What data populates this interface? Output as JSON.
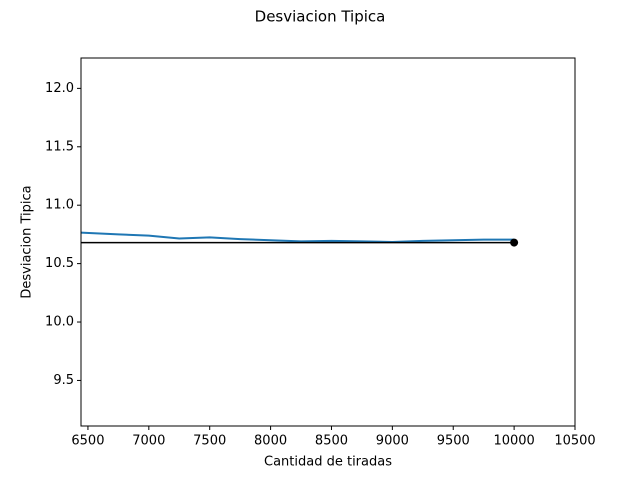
{
  "chart_data": {
    "type": "line",
    "title": "Desviacion Tipica",
    "xlabel": "Cantidad de tiradas",
    "ylabel": "Desviacion Tipica",
    "xlim": [
      6443,
      10500
    ],
    "ylim": [
      9.11,
      12.26
    ],
    "xticks": [
      6500,
      7000,
      7500,
      8000,
      8500,
      9000,
      9500,
      10000,
      10500
    ],
    "yticks": [
      9.5,
      {
        "value": 10.0,
        "label": "10.0"
      },
      10.5,
      {
        "value": 11.0,
        "label": "11.0"
      },
      11.5,
      {
        "value": 12.0,
        "label": "12.0"
      }
    ],
    "grid": false,
    "series": [
      {
        "color": "#1f77b4",
        "x": [
          6443,
          6750,
          7000,
          7250,
          7500,
          7750,
          8000,
          8250,
          8500,
          8750,
          9000,
          9250,
          9500,
          9750,
          10000
        ],
        "values": [
          10.765,
          10.75,
          10.74,
          10.715,
          10.725,
          10.71,
          10.7,
          10.69,
          10.695,
          10.69,
          10.685,
          10.695,
          10.7,
          10.705,
          10.705
        ]
      }
    ],
    "reference": {
      "color": "#000000",
      "x": [
        6443,
        10000
      ],
      "values": [
        10.68,
        10.68
      ]
    },
    "marker": {
      "color": "#000000",
      "x": 10000,
      "y": 10.68
    }
  }
}
